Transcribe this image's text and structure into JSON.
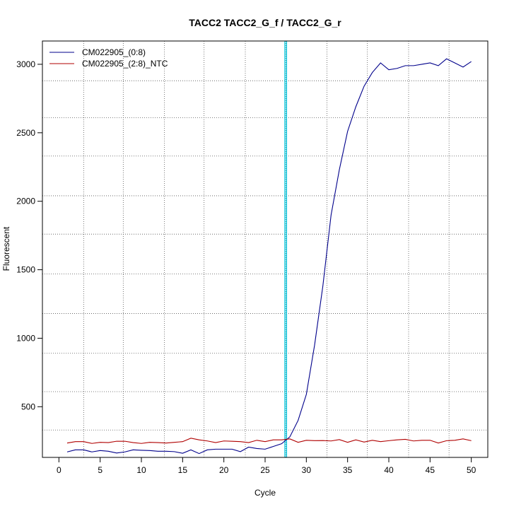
{
  "chart_data": {
    "type": "line",
    "title": "TACC2  TACC2_G_f / TACC2_G_r",
    "xlabel": "Cycle",
    "ylabel": "Fluorescent",
    "xlim": [
      -2,
      52
    ],
    "ylim": [
      130,
      3170
    ],
    "x_ticks": [
      0,
      5,
      10,
      15,
      20,
      25,
      30,
      35,
      40,
      45,
      50
    ],
    "y_ticks": [
      500,
      1000,
      1500,
      2000,
      2500,
      3000
    ],
    "grid": {
      "x_dotted": [
        3,
        7.8,
        12.8,
        17.6,
        22.6,
        27.5,
        32.5,
        37.4,
        42.4,
        47.3
      ],
      "y_dotted": [
        330,
        610,
        890,
        1180,
        1470,
        1760,
        2040,
        2330,
        2610,
        2880
      ]
    },
    "threshold": {
      "x": 27.5,
      "color": "#00c8e0"
    },
    "legend": {
      "position": "top-left"
    },
    "series": [
      {
        "name": "CM022905_(0:8)",
        "color": "#00008b",
        "x": [
          1,
          2,
          3,
          4,
          5,
          6,
          7,
          8,
          9,
          10,
          11,
          12,
          13,
          14,
          15,
          16,
          17,
          18,
          19,
          20,
          21,
          22,
          23,
          24,
          25,
          26,
          27,
          28,
          29,
          30,
          31,
          32,
          33,
          34,
          35,
          36,
          37,
          38,
          39,
          40,
          41,
          42,
          43,
          44,
          45,
          46,
          47,
          48,
          49,
          50
        ],
        "values": [
          170,
          185,
          185,
          170,
          180,
          175,
          162,
          170,
          185,
          182,
          180,
          175,
          175,
          172,
          160,
          185,
          158,
          185,
          190,
          190,
          190,
          172,
          205,
          195,
          190,
          210,
          230,
          280,
          400,
          590,
          950,
          1380,
          1900,
          2230,
          2510,
          2690,
          2840,
          2940,
          3010,
          2960,
          2970,
          2990,
          2990,
          3000,
          3010,
          2990,
          3040,
          3010,
          2980,
          3020
        ]
      },
      {
        "name": "CM022905_(2:8)_NTC",
        "color": "#b00000",
        "x": [
          1,
          2,
          3,
          4,
          5,
          6,
          7,
          8,
          9,
          10,
          11,
          12,
          13,
          14,
          15,
          16,
          17,
          18,
          19,
          20,
          21,
          22,
          23,
          24,
          25,
          26,
          27,
          28,
          29,
          30,
          31,
          32,
          33,
          34,
          35,
          36,
          37,
          38,
          39,
          40,
          41,
          42,
          43,
          44,
          45,
          46,
          47,
          48,
          49,
          50
        ],
        "values": [
          235,
          245,
          245,
          232,
          240,
          238,
          248,
          248,
          238,
          232,
          240,
          238,
          235,
          240,
          245,
          270,
          258,
          250,
          238,
          250,
          248,
          245,
          238,
          255,
          245,
          258,
          258,
          265,
          240,
          255,
          252,
          253,
          250,
          260,
          240,
          258,
          242,
          255,
          245,
          252,
          258,
          262,
          250,
          255,
          255,
          235,
          252,
          255,
          265,
          252
        ]
      }
    ]
  }
}
